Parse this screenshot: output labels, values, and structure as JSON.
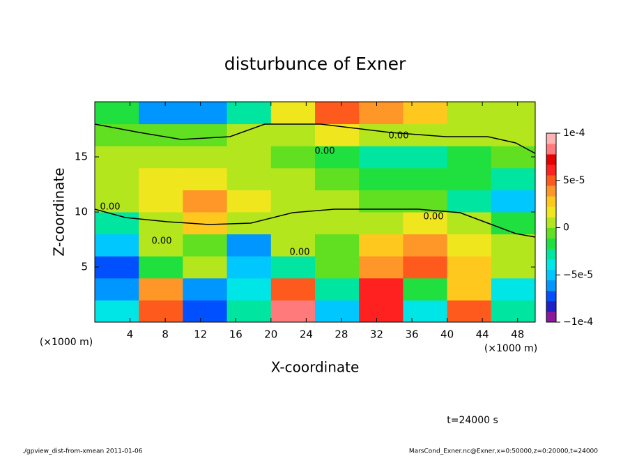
{
  "chart_data": {
    "type": "heatmap",
    "title": "disturbunce of Exner",
    "xlabel": "X-coordinate",
    "ylabel": "Z-coordinate",
    "x_unit": "(×1000 m)",
    "y_unit": "(×1000 m)",
    "time_label": "t=24000 s",
    "footer_left": "./gpview_dist-from-xmean  2011-01-06",
    "footer_right": "MarsCond_Exner.nc@Exner,x=0:50000,z=0:20000,t=24000",
    "contour_labels": [
      "0.00",
      "0.00",
      "0.00",
      "0.00",
      "0.00",
      "0.00"
    ],
    "x": [
      0,
      5,
      10,
      15,
      20,
      25,
      30,
      35,
      40,
      45,
      50
    ],
    "y": [
      0,
      2,
      4,
      6,
      8,
      10,
      12,
      14,
      16,
      18,
      20
    ],
    "values": [
      [
        -4e-05,
        5e-05,
        -7e-05,
        -3e-05,
        8e-05,
        -5e-05,
        6e-05,
        -4e-05,
        5e-05,
        -3e-05
      ],
      [
        -6e-05,
        4e-05,
        -6e-05,
        -4e-05,
        5e-05,
        -3e-05,
        6e-05,
        -2e-05,
        3e-05,
        -4e-05
      ],
      [
        -7e-05,
        -2e-05,
        0,
        -5e-05,
        -3e-05,
        -1e-05,
        4e-05,
        5e-05,
        3e-05,
        0
      ],
      [
        -5e-05,
        0,
        -1e-05,
        -6e-05,
        0,
        -1e-05,
        3e-05,
        4e-05,
        2e-05,
        0
      ],
      [
        -3e-05,
        0,
        3e-05,
        1e-05,
        0,
        1e-05,
        1e-05,
        2e-05,
        0,
        -2e-05
      ],
      [
        0,
        2e-05,
        4e-05,
        2e-05,
        0,
        0,
        -1e-05,
        -1e-05,
        -3e-05,
        -5e-05
      ],
      [
        1e-05,
        2e-05,
        2e-05,
        1e-05,
        0,
        -1e-05,
        -2e-05,
        -2e-05,
        -2e-05,
        -3e-05
      ],
      [
        1e-05,
        1e-05,
        1e-05,
        0,
        -1e-05,
        -2e-05,
        -3e-05,
        -3e-05,
        -2e-05,
        -1e-05
      ],
      [
        -1e-05,
        -1e-05,
        -1e-05,
        0,
        1e-05,
        2e-05,
        1e-05,
        1e-05,
        0,
        0
      ],
      [
        -2e-05,
        -6e-05,
        -6e-05,
        -3e-05,
        2e-05,
        5e-05,
        4e-05,
        3e-05,
        1e-05,
        0
      ]
    ],
    "xlim": [
      0,
      50
    ],
    "ylim": [
      0,
      20
    ],
    "xticks": [
      4,
      8,
      12,
      16,
      20,
      24,
      28,
      32,
      36,
      40,
      44,
      48
    ],
    "yticks": [
      5,
      10,
      15
    ],
    "clim": [
      -0.0001,
      0.0001
    ],
    "cticks": [
      {
        "value": 0.0001,
        "label": "1e-4"
      },
      {
        "value": 5e-05,
        "label": "5e-5"
      },
      0,
      {
        "value": -5e-05,
        "label": "−5e-5"
      },
      {
        "value": -0.0001,
        "label": "−1e-4"
      }
    ],
    "colormap": [
      "#8a1a9b",
      "#2020c8",
      "#0050ff",
      "#0096ff",
      "#00c8ff",
      "#00e6e6",
      "#00e6a0",
      "#20e040",
      "#60e020",
      "#b4e61e",
      "#f0e61e",
      "#ffc81e",
      "#ff9628",
      "#ff5a1e",
      "#ff2020",
      "#e60000",
      "#ff7a7a",
      "#ffb4b4"
    ]
  }
}
